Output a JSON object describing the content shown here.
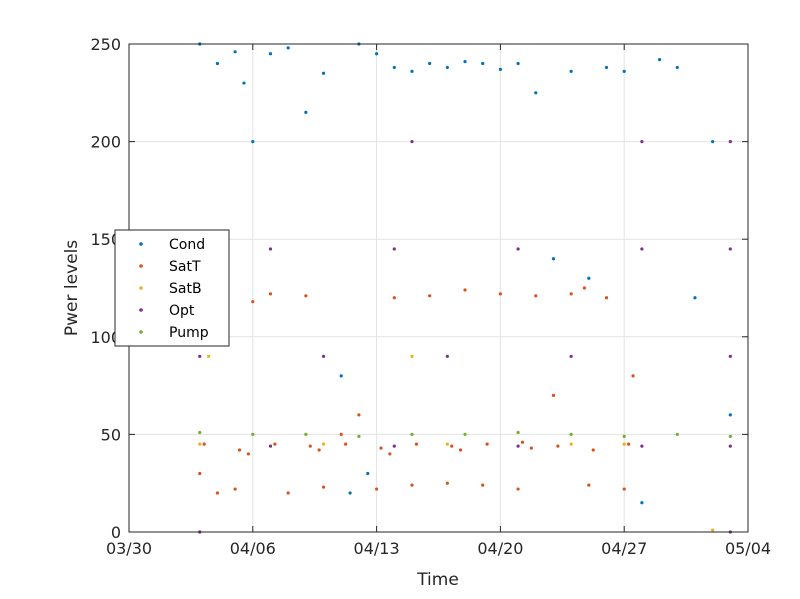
{
  "chart_data": {
    "type": "scatter",
    "xlabel": "Time",
    "ylabel": "Pwer levels",
    "x_unit": "date",
    "xlim": [
      "2024-03-30",
      "2024-05-04"
    ],
    "ylim": [
      0,
      250
    ],
    "x_ticks": [
      {
        "date": "2024-03-30",
        "label": "03/30"
      },
      {
        "date": "2024-04-06",
        "label": "04/06"
      },
      {
        "date": "2024-04-13",
        "label": "04/13"
      },
      {
        "date": "2024-04-20",
        "label": "04/20"
      },
      {
        "date": "2024-04-27",
        "label": "04/27"
      },
      {
        "date": "2024-05-04",
        "label": "05/04"
      }
    ],
    "y_ticks": [
      0,
      50,
      100,
      150,
      200,
      250
    ],
    "grid": true,
    "legend_position": "middle-left",
    "series": [
      {
        "name": "Cond",
        "color": "#0072BD",
        "x": [
          "2024-04-03",
          "2024-04-04",
          "2024-04-05",
          "2024-04-05T12:00",
          "2024-04-06",
          "2024-04-07",
          "2024-04-08",
          "2024-04-09",
          "2024-04-10",
          "2024-04-11",
          "2024-04-11T12:00",
          "2024-04-12",
          "2024-04-12T12:00",
          "2024-04-13",
          "2024-04-14",
          "2024-04-15",
          "2024-04-16",
          "2024-04-17",
          "2024-04-18",
          "2024-04-19",
          "2024-04-20",
          "2024-04-21",
          "2024-04-22",
          "2024-04-23",
          "2024-04-24",
          "2024-04-25",
          "2024-04-26",
          "2024-04-27",
          "2024-04-28",
          "2024-04-29",
          "2024-04-30",
          "2024-05-01",
          "2024-05-02",
          "2024-05-03"
        ],
        "y": [
          250,
          240,
          246,
          230,
          200,
          245,
          248,
          215,
          235,
          80,
          20,
          250,
          30,
          245,
          238,
          236,
          240,
          238,
          241,
          240,
          237,
          240,
          225,
          140,
          236,
          130,
          238,
          236,
          15,
          242,
          238,
          120,
          200,
          60
        ]
      },
      {
        "name": "SatT",
        "color": "#D95319",
        "x": [
          "2024-04-03",
          "2024-04-04",
          "2024-04-05",
          "2024-04-06",
          "2024-04-07",
          "2024-04-08",
          "2024-04-09",
          "2024-04-10",
          "2024-04-11",
          "2024-04-12",
          "2024-04-13",
          "2024-04-14",
          "2024-04-15",
          "2024-04-16",
          "2024-04-17",
          "2024-04-18",
          "2024-04-19",
          "2024-04-20",
          "2024-04-21",
          "2024-04-22",
          "2024-04-23",
          "2024-04-24",
          "2024-04-25",
          "2024-04-26",
          "2024-04-27",
          "2024-04-27T12:00",
          "2024-04-03T06:00",
          "2024-04-05T06:00",
          "2024-04-07T06:00",
          "2024-04-09T06:00",
          "2024-04-11T06:00",
          "2024-04-13T06:00",
          "2024-04-15T06:00",
          "2024-04-17T06:00",
          "2024-04-19T06:00",
          "2024-04-21T06:00",
          "2024-04-23T06:00",
          "2024-04-25T06:00",
          "2024-04-27T06:00",
          "2024-04-05T18:00",
          "2024-04-09T18:00",
          "2024-04-13T18:00",
          "2024-04-17T18:00",
          "2024-04-21T18:00",
          "2024-04-24T18:00"
        ],
        "y": [
          30,
          20,
          22,
          118,
          122,
          20,
          121,
          23,
          50,
          60,
          22,
          120,
          24,
          121,
          25,
          124,
          24,
          122,
          22,
          121,
          70,
          122,
          24,
          120,
          22,
          80,
          45,
          42,
          45,
          44,
          45,
          43,
          45,
          44,
          45,
          46,
          44,
          42,
          45,
          40,
          42,
          40,
          42,
          43,
          125
        ]
      },
      {
        "name": "SatB",
        "color": "#EDB120",
        "x": [
          "2024-04-03",
          "2024-04-10",
          "2024-04-17",
          "2024-04-24",
          "2024-04-27",
          "2024-04-03T12:00",
          "2024-04-15",
          "2024-05-02"
        ],
        "y": [
          45,
          45,
          45,
          45,
          45,
          90,
          90,
          1
        ]
      },
      {
        "name": "Opt",
        "color": "#7E2F8E",
        "x": [
          "2024-04-03",
          "2024-04-10",
          "2024-04-17",
          "2024-04-24",
          "2024-05-03",
          "2024-04-07",
          "2024-04-14",
          "2024-04-21",
          "2024-04-28",
          "2024-05-03",
          "2024-04-07",
          "2024-04-14",
          "2024-04-21",
          "2024-04-28",
          "2024-05-03",
          "2024-04-28",
          "2024-05-03",
          "2024-04-15",
          "2024-04-03",
          "2024-05-03"
        ],
        "y": [
          90,
          90,
          90,
          90,
          90,
          145,
          145,
          145,
          145,
          145,
          44,
          44,
          44,
          44,
          44,
          200,
          200,
          200,
          0,
          0
        ]
      },
      {
        "name": "Pump",
        "color": "#77AC30",
        "x": [
          "2024-04-03",
          "2024-04-06",
          "2024-04-09",
          "2024-04-12",
          "2024-04-15",
          "2024-04-18",
          "2024-04-21",
          "2024-04-24",
          "2024-04-27",
          "2024-04-30",
          "2024-05-03"
        ],
        "y": [
          51,
          50,
          50,
          49,
          50,
          50,
          51,
          50,
          49,
          50,
          49
        ]
      }
    ]
  }
}
